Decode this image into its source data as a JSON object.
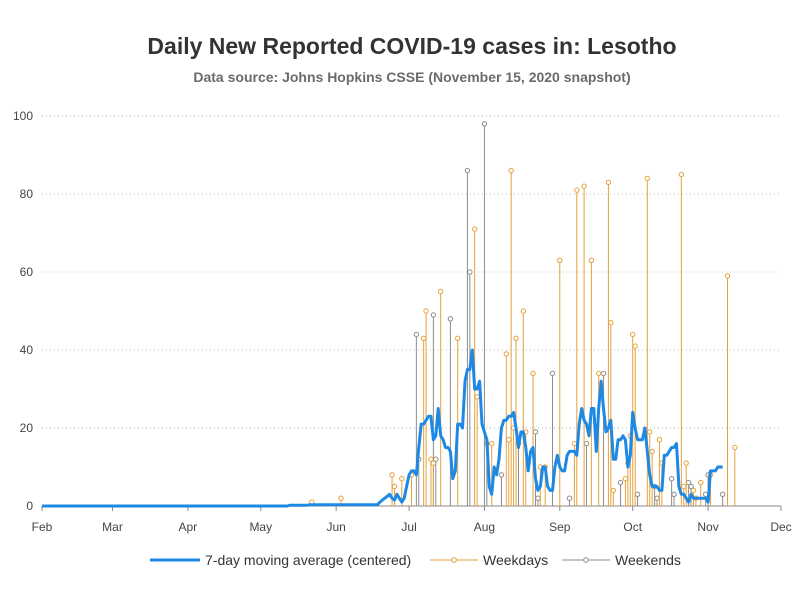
{
  "chart_data": {
    "type": "line",
    "title": "Daily New Reported COVID-19 cases in: Lesotho",
    "subtitle": "Data source: Johns Hopkins CSSE (November 15, 2020 snapshot)",
    "xlabel": "",
    "ylabel": "",
    "x_axis": {
      "type": "date",
      "range": [
        "2020-02-01",
        "2020-12-01"
      ],
      "tick_dates": [
        "2020-02-01",
        "2020-03-01",
        "2020-04-01",
        "2020-05-01",
        "2020-06-01",
        "2020-07-01",
        "2020-08-01",
        "2020-09-01",
        "2020-10-01",
        "2020-11-01",
        "2020-12-01"
      ],
      "tick_labels": [
        "Feb",
        "Mar",
        "Apr",
        "May",
        "Jun",
        "Jul",
        "Aug",
        "Sep",
        "Oct",
        "Nov",
        "Dec"
      ]
    },
    "y_axis": {
      "range": [
        0,
        100
      ],
      "ticks": [
        0,
        20,
        40,
        60,
        80,
        100
      ],
      "tick_labels": [
        "0",
        "20",
        "40",
        "60",
        "80",
        "100"
      ]
    },
    "grid": "horizontal dotted",
    "legend_position": "bottom",
    "colors": {
      "moving_average": "#1e88e5",
      "weekdays": "#e6a13b",
      "weekends": "#8c8c8c"
    },
    "series": [
      {
        "name": "7-day moving average (centered)",
        "kind": "line",
        "points": [
          [
            "2020-02-01",
            0
          ],
          [
            "2020-05-12",
            0
          ],
          [
            "2020-05-13",
            0.2
          ],
          [
            "2020-05-20",
            0.2
          ],
          [
            "2020-05-21",
            0.3
          ],
          [
            "2020-06-01",
            0.3
          ],
          [
            "2020-06-18",
            0.3
          ],
          [
            "2020-06-19",
            1
          ],
          [
            "2020-06-20",
            1.5
          ],
          [
            "2020-06-21",
            2
          ],
          [
            "2020-06-22",
            2.5
          ],
          [
            "2020-06-23",
            3
          ],
          [
            "2020-06-24",
            2
          ],
          [
            "2020-06-25",
            1.5
          ],
          [
            "2020-06-26",
            3
          ],
          [
            "2020-06-27",
            2
          ],
          [
            "2020-06-28",
            1
          ],
          [
            "2020-06-29",
            2
          ],
          [
            "2020-06-30",
            5
          ],
          [
            "2020-07-01",
            8
          ],
          [
            "2020-07-02",
            9
          ],
          [
            "2020-07-03",
            9
          ],
          [
            "2020-07-04",
            8
          ],
          [
            "2020-07-05",
            15
          ],
          [
            "2020-07-06",
            21
          ],
          [
            "2020-07-07",
            21
          ],
          [
            "2020-07-08",
            22
          ],
          [
            "2020-07-09",
            23
          ],
          [
            "2020-07-10",
            23
          ],
          [
            "2020-07-11",
            17
          ],
          [
            "2020-07-12",
            18
          ],
          [
            "2020-07-13",
            25
          ],
          [
            "2020-07-14",
            18
          ],
          [
            "2020-07-15",
            17
          ],
          [
            "2020-07-16",
            15
          ],
          [
            "2020-07-17",
            15
          ],
          [
            "2020-07-18",
            14
          ],
          [
            "2020-07-19",
            7
          ],
          [
            "2020-07-20",
            9
          ],
          [
            "2020-07-21",
            21
          ],
          [
            "2020-07-22",
            21
          ],
          [
            "2020-07-23",
            20
          ],
          [
            "2020-07-24",
            32
          ],
          [
            "2020-07-25",
            35
          ],
          [
            "2020-07-26",
            35
          ],
          [
            "2020-07-27",
            40
          ],
          [
            "2020-07-28",
            30
          ],
          [
            "2020-07-29",
            30
          ],
          [
            "2020-07-30",
            32
          ],
          [
            "2020-07-31",
            21
          ],
          [
            "2020-08-01",
            19
          ],
          [
            "2020-08-02",
            17
          ],
          [
            "2020-08-03",
            5
          ],
          [
            "2020-08-04",
            3
          ],
          [
            "2020-08-05",
            10
          ],
          [
            "2020-08-06",
            8
          ],
          [
            "2020-08-07",
            12
          ],
          [
            "2020-08-08",
            20
          ],
          [
            "2020-08-09",
            22
          ],
          [
            "2020-08-10",
            22
          ],
          [
            "2020-08-11",
            23
          ],
          [
            "2020-08-12",
            23
          ],
          [
            "2020-08-13",
            24
          ],
          [
            "2020-08-14",
            20
          ],
          [
            "2020-08-15",
            15
          ],
          [
            "2020-08-16",
            19
          ],
          [
            "2020-08-17",
            19
          ],
          [
            "2020-08-18",
            15
          ],
          [
            "2020-08-19",
            9
          ],
          [
            "2020-08-20",
            14
          ],
          [
            "2020-08-21",
            15
          ],
          [
            "2020-08-22",
            7
          ],
          [
            "2020-08-23",
            4
          ],
          [
            "2020-08-24",
            5
          ],
          [
            "2020-08-25",
            10
          ],
          [
            "2020-08-26",
            10
          ],
          [
            "2020-08-27",
            5
          ],
          [
            "2020-08-28",
            4
          ],
          [
            "2020-08-29",
            4
          ],
          [
            "2020-08-30",
            10
          ],
          [
            "2020-08-31",
            13
          ],
          [
            "2020-09-01",
            10
          ],
          [
            "2020-09-02",
            9
          ],
          [
            "2020-09-03",
            9
          ],
          [
            "2020-09-04",
            13
          ],
          [
            "2020-09-05",
            14
          ],
          [
            "2020-09-06",
            14
          ],
          [
            "2020-09-07",
            14
          ],
          [
            "2020-09-08",
            13
          ],
          [
            "2020-09-09",
            21
          ],
          [
            "2020-09-10",
            25
          ],
          [
            "2020-09-11",
            22
          ],
          [
            "2020-09-12",
            21
          ],
          [
            "2020-09-13",
            18
          ],
          [
            "2020-09-14",
            25
          ],
          [
            "2020-09-15",
            25
          ],
          [
            "2020-09-16",
            14
          ],
          [
            "2020-09-17",
            25
          ],
          [
            "2020-09-18",
            32
          ],
          [
            "2020-09-19",
            25
          ],
          [
            "2020-09-20",
            19
          ],
          [
            "2020-09-21",
            20
          ],
          [
            "2020-09-22",
            22
          ],
          [
            "2020-09-23",
            12
          ],
          [
            "2020-09-24",
            12
          ],
          [
            "2020-09-25",
            17
          ],
          [
            "2020-09-26",
            17
          ],
          [
            "2020-09-27",
            18
          ],
          [
            "2020-09-28",
            17
          ],
          [
            "2020-09-29",
            10
          ],
          [
            "2020-09-30",
            13
          ],
          [
            "2020-10-01",
            24
          ],
          [
            "2020-10-02",
            20
          ],
          [
            "2020-10-03",
            17
          ],
          [
            "2020-10-04",
            17
          ],
          [
            "2020-10-05",
            17
          ],
          [
            "2020-10-06",
            20
          ],
          [
            "2020-10-07",
            14
          ],
          [
            "2020-10-08",
            8
          ],
          [
            "2020-10-09",
            5
          ],
          [
            "2020-10-10",
            5
          ],
          [
            "2020-10-11",
            5
          ],
          [
            "2020-10-12",
            4
          ],
          [
            "2020-10-13",
            4
          ],
          [
            "2020-10-14",
            13
          ],
          [
            "2020-10-15",
            13
          ],
          [
            "2020-10-16",
            14
          ],
          [
            "2020-10-17",
            15
          ],
          [
            "2020-10-18",
            15
          ],
          [
            "2020-10-19",
            16
          ],
          [
            "2020-10-20",
            5
          ],
          [
            "2020-10-21",
            3
          ],
          [
            "2020-10-22",
            3
          ],
          [
            "2020-10-23",
            2
          ],
          [
            "2020-10-24",
            1
          ],
          [
            "2020-10-25",
            3
          ],
          [
            "2020-10-26",
            2
          ],
          [
            "2020-10-27",
            2
          ],
          [
            "2020-10-28",
            2
          ],
          [
            "2020-10-29",
            2
          ],
          [
            "2020-10-30",
            2
          ],
          [
            "2020-10-31",
            2
          ],
          [
            "2020-11-01",
            1
          ],
          [
            "2020-11-02",
            9
          ],
          [
            "2020-11-03",
            9
          ],
          [
            "2020-11-04",
            9
          ],
          [
            "2020-11-05",
            10
          ],
          [
            "2020-11-06",
            10
          ],
          [
            "2020-11-07",
            10
          ]
        ]
      },
      {
        "name": "Weekdays",
        "kind": "stem",
        "points": [
          [
            "2020-05-22",
            1
          ],
          [
            "2020-06-03",
            2
          ],
          [
            "2020-06-24",
            8
          ],
          [
            "2020-06-25",
            5
          ],
          [
            "2020-06-28",
            7
          ],
          [
            "2020-07-02",
            8
          ],
          [
            "2020-07-07",
            43
          ],
          [
            "2020-07-08",
            50
          ],
          [
            "2020-07-10",
            12
          ],
          [
            "2020-07-11",
            11
          ],
          [
            "2020-07-14",
            55
          ],
          [
            "2020-07-21",
            43
          ],
          [
            "2020-07-28",
            71
          ],
          [
            "2020-07-29",
            28
          ],
          [
            "2020-08-04",
            16
          ],
          [
            "2020-08-10",
            39
          ],
          [
            "2020-08-11",
            17
          ],
          [
            "2020-08-12",
            86
          ],
          [
            "2020-08-13",
            20
          ],
          [
            "2020-08-14",
            43
          ],
          [
            "2020-08-17",
            50
          ],
          [
            "2020-08-18",
            19
          ],
          [
            "2020-08-21",
            34
          ],
          [
            "2020-08-24",
            10
          ],
          [
            "2020-08-26",
            10
          ],
          [
            "2020-09-01",
            63
          ],
          [
            "2020-09-07",
            16
          ],
          [
            "2020-09-08",
            81
          ],
          [
            "2020-09-11",
            82
          ],
          [
            "2020-09-14",
            63
          ],
          [
            "2020-09-17",
            34
          ],
          [
            "2020-09-21",
            83
          ],
          [
            "2020-09-22",
            47
          ],
          [
            "2020-09-23",
            4
          ],
          [
            "2020-09-28",
            7
          ],
          [
            "2020-09-29",
            11
          ],
          [
            "2020-09-30",
            18
          ],
          [
            "2020-10-01",
            44
          ],
          [
            "2020-10-02",
            41
          ],
          [
            "2020-10-07",
            84
          ],
          [
            "2020-10-08",
            19
          ],
          [
            "2020-10-09",
            14
          ],
          [
            "2020-10-12",
            17
          ],
          [
            "2020-10-13",
            11
          ],
          [
            "2020-10-21",
            85
          ],
          [
            "2020-10-22",
            5
          ],
          [
            "2020-10-23",
            11
          ],
          [
            "2020-10-26",
            4
          ],
          [
            "2020-10-27",
            2
          ],
          [
            "2020-10-29",
            6
          ],
          [
            "2020-11-02",
            8
          ],
          [
            "2020-11-09",
            59
          ],
          [
            "2020-11-12",
            15
          ]
        ]
      },
      {
        "name": "Weekends",
        "kind": "stem",
        "points": [
          [
            "2020-07-04",
            44
          ],
          [
            "2020-07-05",
            12
          ],
          [
            "2020-07-11",
            49
          ],
          [
            "2020-07-12",
            12
          ],
          [
            "2020-07-18",
            48
          ],
          [
            "2020-07-25",
            86
          ],
          [
            "2020-07-26",
            60
          ],
          [
            "2020-08-01",
            98
          ],
          [
            "2020-08-02",
            16
          ],
          [
            "2020-08-08",
            8
          ],
          [
            "2020-08-15",
            16
          ],
          [
            "2020-08-22",
            19
          ],
          [
            "2020-08-23",
            2
          ],
          [
            "2020-08-29",
            34
          ],
          [
            "2020-09-05",
            2
          ],
          [
            "2020-09-12",
            16
          ],
          [
            "2020-09-19",
            34
          ],
          [
            "2020-09-26",
            6
          ],
          [
            "2020-10-03",
            3
          ],
          [
            "2020-10-10",
            5
          ],
          [
            "2020-10-11",
            2
          ],
          [
            "2020-10-17",
            7
          ],
          [
            "2020-10-18",
            3
          ],
          [
            "2020-10-24",
            6
          ],
          [
            "2020-10-25",
            5
          ],
          [
            "2020-10-31",
            3
          ],
          [
            "2020-11-01",
            8
          ],
          [
            "2020-11-07",
            3
          ]
        ]
      }
    ],
    "legend": [
      "7-day moving average (centered)",
      "Weekdays",
      "Weekends"
    ]
  }
}
